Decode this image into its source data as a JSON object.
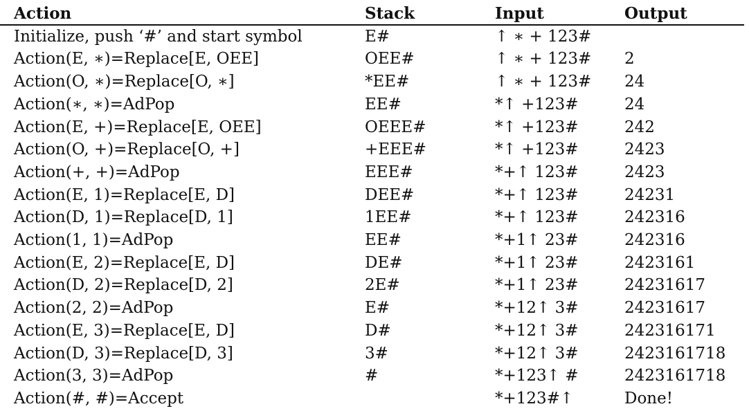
{
  "headers": {
    "action": "Action",
    "stack": "Stack",
    "input": "Input",
    "output": "Output"
  },
  "rows": [
    {
      "action": "Initialize, push ‘#’ and start symbol",
      "stack": "E#",
      "input": "↑ ∗ + 123#",
      "output": ""
    },
    {
      "action": "Action(E, ∗)=Replace[E, OEE]",
      "stack": "OEE#",
      "input": "↑ ∗ + 123#",
      "output": "2"
    },
    {
      "action": "Action(O, ∗)=Replace[O, ∗]",
      "stack": "*EE#",
      "input": "↑ ∗ + 123#",
      "output": "24"
    },
    {
      "action": "Action(∗, ∗)=AdPop",
      "stack": "EE#",
      "input": "*↑ +123#",
      "output": "24"
    },
    {
      "action": "Action(E, +)=Replace[E, OEE]",
      "stack": "OEEE#",
      "input": "*↑ +123#",
      "output": "242"
    },
    {
      "action": "Action(O, +)=Replace[O, +]",
      "stack": "+EEE#",
      "input": "*↑ +123#",
      "output": "2423"
    },
    {
      "action": "Action(+, +)=AdPop",
      "stack": "EEE#",
      "input": "*+↑ 123#",
      "output": "2423"
    },
    {
      "action": "Action(E, 1)=Replace[E, D]",
      "stack": "DEE#",
      "input": "*+↑ 123#",
      "output": "24231"
    },
    {
      "action": "Action(D, 1)=Replace[D, 1]",
      "stack": "1EE#",
      "input": "*+↑ 123#",
      "output": "242316"
    },
    {
      "action": "Action(1, 1)=AdPop",
      "stack": "EE#",
      "input": "*+1↑ 23#",
      "output": "242316"
    },
    {
      "action": "Action(E, 2)=Replace[E, D]",
      "stack": "DE#",
      "input": "*+1↑ 23#",
      "output": "2423161"
    },
    {
      "action": "Action(D, 2)=Replace[D, 2]",
      "stack": "2E#",
      "input": "*+1↑ 23#",
      "output": "24231617"
    },
    {
      "action": "Action(2, 2)=AdPop",
      "stack": "E#",
      "input": "*+12↑ 3#",
      "output": "24231617"
    },
    {
      "action": "Action(E, 3)=Replace[E, D]",
      "stack": "D#",
      "input": "*+12↑ 3#",
      "output": "242316171"
    },
    {
      "action": "Action(D, 3)=Replace[D, 3]",
      "stack": "3#",
      "input": "*+12↑ 3#",
      "output": "2423161718"
    },
    {
      "action": "Action(3, 3)=AdPop",
      "stack": "#",
      "input": "*+123↑ #",
      "output": "2423161718"
    },
    {
      "action": "Action(#, #)=Accept",
      "stack": "",
      "input": "*+123#↑",
      "output": "Done!"
    }
  ]
}
